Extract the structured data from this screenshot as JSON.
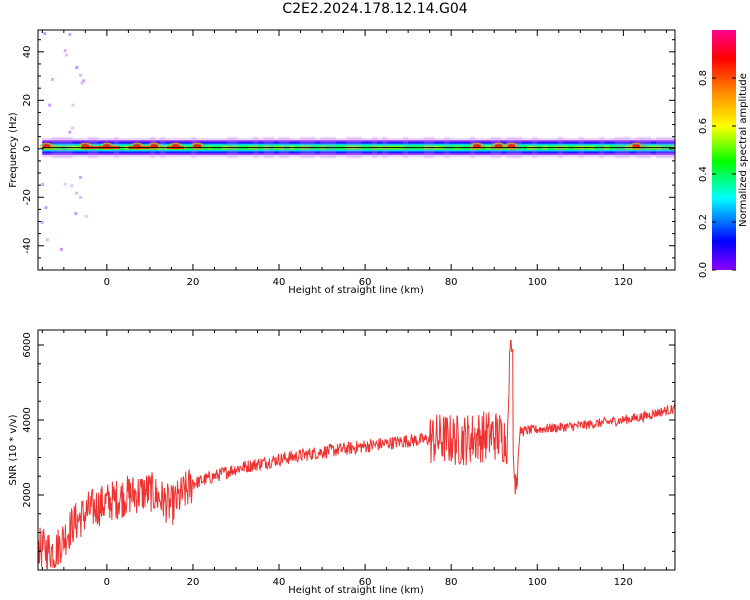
{
  "title": "C2E2.2024.178.12.14.G04",
  "top": {
    "xlabel": "Height of straight line (km)",
    "ylabel": "Frequency (Hz)",
    "xlim": [
      -16,
      132
    ],
    "ylim": [
      -50,
      49
    ],
    "xticks": [
      0,
      20,
      40,
      60,
      80,
      100,
      120
    ],
    "yticks": [
      -40,
      -20,
      0,
      20,
      40
    ],
    "colorbar": {
      "label": "Normalized spectral amplitude",
      "range": [
        0,
        1
      ],
      "ticks": [
        "0.0",
        "0.2",
        "0.4",
        "0.6",
        "0.8"
      ],
      "tick_values": [
        0.0,
        0.2,
        0.4,
        0.6,
        0.8
      ],
      "colors": [
        "#8a00ff",
        "#0000ff",
        "#00ffff",
        "#00ff00",
        "#ffff00",
        "#ff8000",
        "#ff0000",
        "#ff0090"
      ]
    },
    "line_color": "#000000"
  },
  "bottom": {
    "xlabel": "Height of straight line (km)",
    "ylabel": "SNR (10 * v/v)",
    "xlim": [
      -16,
      132
    ],
    "ylim": [
      0,
      6400
    ],
    "xticks": [
      0,
      20,
      40,
      60,
      80,
      100,
      120
    ],
    "yticks": [
      2000,
      4000,
      6000
    ],
    "line_color": "#ee3333"
  },
  "chart_data": [
    {
      "type": "heatmap",
      "title": "C2E2.2024.178.12.14.G04",
      "xlabel": "Height of straight line (km)",
      "ylabel": "Frequency (Hz)",
      "xlim": [
        -16,
        132
      ],
      "ylim": [
        -50,
        49
      ],
      "colorbar_label": "Normalized spectral amplitude",
      "band_center_hz": 0.5,
      "band_halfwidth_hz": 4,
      "hot_spots_km": [
        -14,
        -5,
        0,
        7,
        11,
        16,
        21,
        86,
        91,
        94,
        123
      ]
    },
    {
      "type": "line",
      "xlabel": "Height of straight line (km)",
      "ylabel": "SNR (10 * v/v)",
      "xlim": [
        -16,
        132
      ],
      "ylim": [
        0,
        6400
      ],
      "trend": {
        "x": [
          -16,
          -12,
          -8,
          -4,
          0,
          5,
          10,
          15,
          20,
          30,
          40,
          50,
          60,
          70,
          78,
          82,
          86,
          90,
          93,
          94,
          95,
          96,
          100,
          110,
          120,
          125,
          128,
          132
        ],
        "y": [
          600,
          500,
          1200,
          1600,
          1800,
          2000,
          2100,
          1700,
          2300,
          2700,
          2950,
          3150,
          3300,
          3450,
          3500,
          3450,
          3550,
          3600,
          3500,
          6300,
          2100,
          3700,
          3750,
          3850,
          4000,
          4100,
          4200,
          4300
        ]
      }
    }
  ]
}
